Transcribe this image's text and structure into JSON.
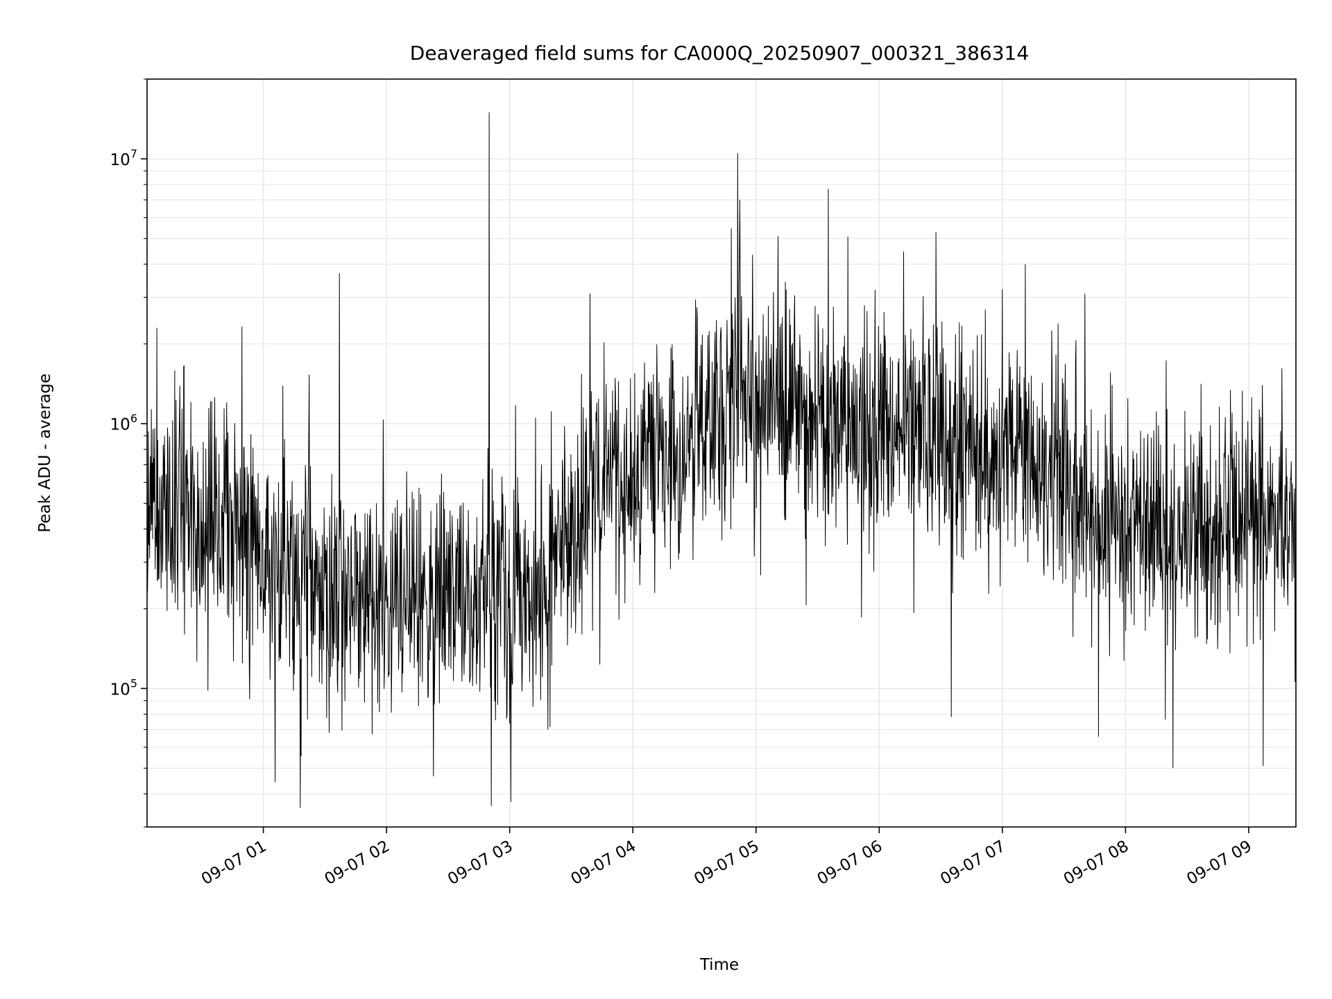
{
  "chart_data": {
    "type": "line",
    "title": "Deaveraged field sums for CA000Q_20250907_000321_386314",
    "xlabel": "Time",
    "ylabel": "Peak ADU - average",
    "x_start": "2025-09-07T00:03:21",
    "x_end": "2025-09-07T09:23:00",
    "x_ticks": [
      "09-07 01",
      "09-07 02",
      "09-07 03",
      "09-07 04",
      "09-07 05",
      "09-07 06",
      "09-07 07",
      "09-07 08",
      "09-07 09"
    ],
    "y_scale": "log",
    "ylim": [
      30000,
      20000000
    ],
    "y_ticks": [
      {
        "base": "10",
        "exp": "5",
        "value": 100000
      },
      {
        "base": "10",
        "exp": "6",
        "value": 1000000
      },
      {
        "base": "10",
        "exp": "7",
        "value": 10000000
      }
    ],
    "grid": true,
    "line_color": "#000000",
    "grid_color": "#e6e6e6",
    "series": [
      {
        "x": [
          "00:03",
          "00:10",
          "00:20",
          "00:30",
          "00:40",
          "00:50",
          "01:00",
          "01:10",
          "01:20",
          "01:30",
          "01:40",
          "01:50",
          "02:00",
          "02:10",
          "02:20",
          "02:30",
          "02:40",
          "02:50",
          "03:00",
          "03:10",
          "03:20",
          "03:30",
          "03:40",
          "03:50",
          "04:00",
          "04:10",
          "04:20",
          "04:30",
          "04:40",
          "04:50",
          "05:00",
          "05:10",
          "05:20",
          "05:30",
          "05:40",
          "05:50",
          "06:00",
          "06:10",
          "06:20",
          "06:30",
          "06:40",
          "06:50",
          "07:00",
          "07:10",
          "07:20",
          "07:30",
          "07:40",
          "07:50",
          "08:00",
          "08:10",
          "08:20",
          "08:30",
          "08:40",
          "08:50",
          "09:00",
          "09:10",
          "09:20",
          "09:23"
        ],
        "median": [
          400000,
          550000,
          450000,
          380000,
          420000,
          400000,
          280000,
          270000,
          300000,
          250000,
          200000,
          220000,
          180000,
          190000,
          210000,
          200000,
          220000,
          230000,
          220000,
          200000,
          280000,
          350000,
          500000,
          700000,
          600000,
          800000,
          850000,
          900000,
          1200000,
          1300000,
          1250000,
          1100000,
          1000000,
          950000,
          950000,
          1000000,
          900000,
          950000,
          1000000,
          900000,
          850000,
          900000,
          800000,
          850000,
          700000,
          600000,
          500000,
          500000,
          400000,
          420000,
          350000,
          400000,
          380000,
          420000,
          400000,
          420000,
          450000,
          380000
        ],
        "spikes": [
          {
            "x": "00:08",
            "value": 2300000
          },
          {
            "x": "01:37",
            "value": 3700000
          },
          {
            "x": "02:50",
            "value": 15000000
          },
          {
            "x": "02:51",
            "value": 36000
          },
          {
            "x": "03:39",
            "value": 3100000
          },
          {
            "x": "04:51",
            "value": 10500000
          },
          {
            "x": "04:52",
            "value": 7000000
          },
          {
            "x": "05:35",
            "value": 7700000
          },
          {
            "x": "06:35",
            "value": 78000
          },
          {
            "x": "07:11",
            "value": 4000000
          },
          {
            "x": "08:23",
            "value": 50000
          },
          {
            "x": "09:07",
            "value": 51000
          }
        ]
      }
    ]
  }
}
